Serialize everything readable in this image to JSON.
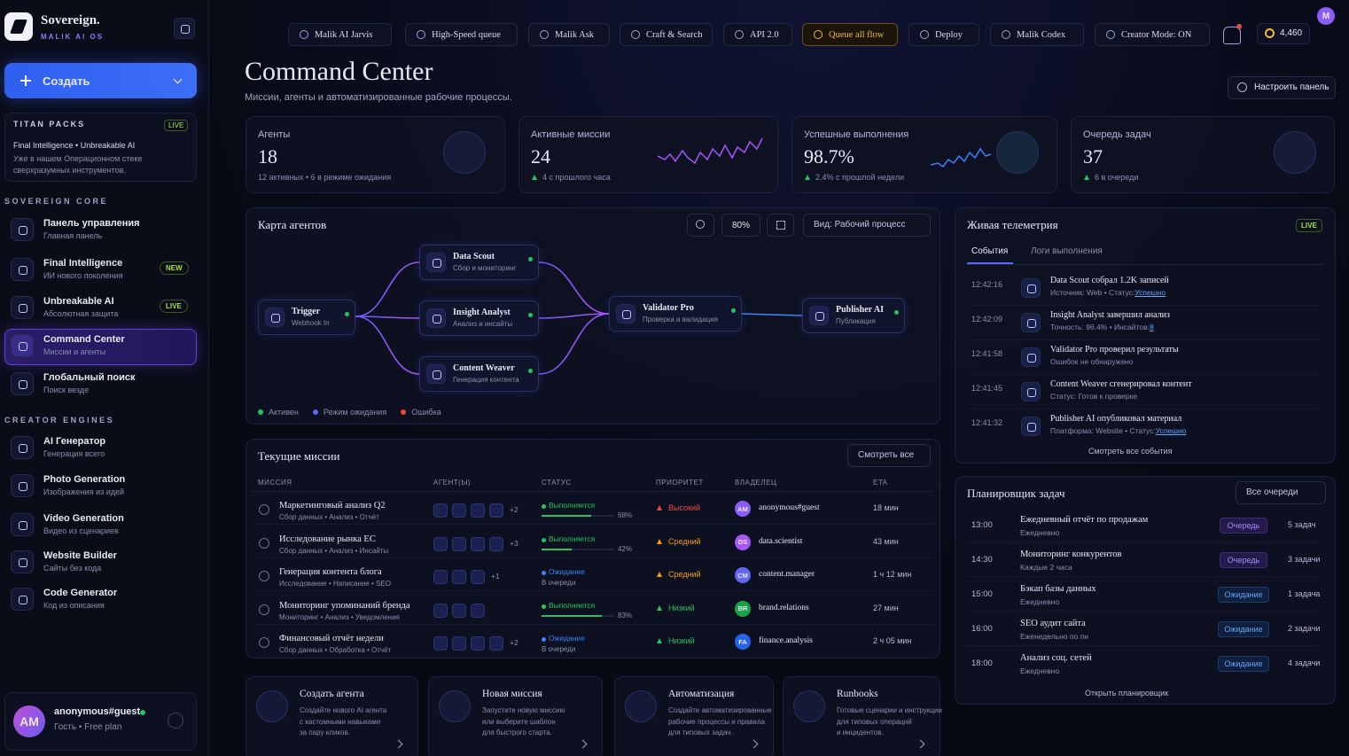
{
  "sidebar": {
    "brand": "Sovereign.",
    "brand_sub": "MALIK AI OS",
    "create": "Создать",
    "titan": {
      "title": "TITAN PACKS",
      "badge": "LIVE",
      "line1": "Final Intelligence • Unbreakable AI",
      "line2": "Уже в нашем Операционном стеке",
      "line3": "сверхразумных инструментов."
    },
    "sections": [
      {
        "title": "SOVEREIGN CORE",
        "items": [
          {
            "label": "Панель управления",
            "sub": "Главная панель"
          },
          {
            "label": "Final Intelligence",
            "sub": "ИИ нового поколения",
            "badge": "NEW"
          },
          {
            "label": "Unbreakable AI",
            "sub": "Абсолютная защита",
            "badge": "LIVE"
          },
          {
            "label": "Command Center",
            "sub": "Миссии и агенты",
            "active": true
          },
          {
            "label": "Глобальный поиск",
            "sub": "Поиск везде"
          }
        ]
      },
      {
        "title": "CREATOR ENGINES",
        "items": [
          {
            "label": "AI Генератор",
            "sub": "Генерация всего"
          },
          {
            "label": "Photo Generation",
            "sub": "Изображения из идей"
          },
          {
            "label": "Video Generation",
            "sub": "Видео из сценариев"
          },
          {
            "label": "Website Builder",
            "sub": "Сайты без кода"
          },
          {
            "label": "Code Generator",
            "sub": "Код из описания"
          }
        ]
      }
    ],
    "user": {
      "avatar": "AM",
      "name": "anonymous#guest",
      "plan": "Гость • Free plan"
    }
  },
  "topbar": {
    "tabs": [
      "Malik AI Jarvis",
      "High-Speed queue",
      "Malik Ask",
      "Craft & Search",
      "API 2.0",
      "Queue all flow",
      "Deploy",
      "Malik Codex",
      "Creator Mode: ON"
    ],
    "credits": "4,460",
    "avatar": "M"
  },
  "header": {
    "title": "Command Center",
    "subtitle": "Миссии, агенты и автоматизированные рабочие процессы.",
    "settings": "Настроить панель"
  },
  "stats": [
    {
      "label": "Агенты",
      "value": "18",
      "note": "12 активных • 6 в режиме ожидания"
    },
    {
      "label": "Активные миссии",
      "value": "24",
      "note": "4 с прошлого часа"
    },
    {
      "label": "Успешные выполнения",
      "value": "98.7%",
      "note": "2.4% с прошлой недели"
    },
    {
      "label": "Очередь задач",
      "value": "37",
      "note": "6 в очереди"
    }
  ],
  "agent_map": {
    "title": "Карта агентов",
    "zoom": "80%",
    "view": "Вид: Рабочий процесс",
    "nodes": [
      {
        "label": "Trigger",
        "sub": "Webhook In"
      },
      {
        "label": "Data Scout",
        "sub": "Сбор и мониторинг"
      },
      {
        "label": "Insight Analyst",
        "sub": "Анализ и инсайты"
      },
      {
        "label": "Content Weaver",
        "sub": "Генерация контента"
      },
      {
        "label": "Validator Pro",
        "sub": "Проверка и валидация"
      },
      {
        "label": "Publisher AI",
        "sub": "Публикация"
      }
    ],
    "legend": [
      {
        "label": "Активен",
        "color": "#22c55e"
      },
      {
        "label": "Режим ожидания",
        "color": "#6366f1"
      },
      {
        "label": "Ошибка",
        "color": "#ef4444"
      }
    ]
  },
  "telemetry": {
    "title": "Живая телеметрия",
    "badge": "LIVE",
    "tabs": [
      "События",
      "Логи выполнения"
    ],
    "events": [
      {
        "time": "12:42:16",
        "title": "Data Scout собрал 1.2K записей",
        "detail": "Источник: Web • Статус: ",
        "status": "Успешно"
      },
      {
        "time": "12:42:09",
        "title": "Insight Analyst завершил анализ",
        "detail": "Точность: 96.4% • Инсайтов: ",
        "status": "8"
      },
      {
        "time": "12:41:58",
        "title": "Validator Pro проверил результаты",
        "detail": "Ошибок не обнаружено"
      },
      {
        "time": "12:41:45",
        "title": "Content Weaver сгенерировал контент",
        "detail": "Статус: Готов к проверке"
      },
      {
        "time": "12:41:32",
        "title": "Publisher AI опубликовал материал",
        "detail": "Платформа: Website • Статус: ",
        "status": "Успешно"
      }
    ],
    "link": "Смотреть все события"
  },
  "missions": {
    "title": "Текущие миссии",
    "button": "Смотреть все",
    "columns": [
      "МИССИЯ",
      "АГЕНТ(Ы)",
      "СТАТУС",
      "ПРИОРИТЕТ",
      "ВЛАДЕЛЕЦ",
      "ETA"
    ],
    "rows": [
      {
        "name": "Маркетинговый анализ Q2",
        "path": "Сбор данных • Анализ • Отчёт",
        "agent_icons": 4,
        "agents_more": "+2",
        "status": "Выполняется",
        "status_color": "#22c55e",
        "progress": {
          "value": 68,
          "label": "68%"
        },
        "priority": "Высокий",
        "priority_color": "#ef4444",
        "owner_initials": "AM",
        "owner_color": "#8b5cf6",
        "owner": "anonymous#guest",
        "eta": "18 мин"
      },
      {
        "name": "Исследование рынка ЕС",
        "path": "Сбор данных • Анализ • Инсайты",
        "agent_icons": 4,
        "agents_more": "+3",
        "status": "Выполняется",
        "status_color": "#22c55e",
        "progress": {
          "value": 42,
          "label": "42%"
        },
        "priority": "Средний",
        "priority_color": "#f59e0b",
        "owner_initials": "DS",
        "owner_color": "#a855f7",
        "owner": "data.scientist",
        "eta": "43 мин"
      },
      {
        "name": "Генерация контента блога",
        "path": "Исследование • Написание • SEO",
        "agent_icons": 3,
        "agents_more": "+1",
        "status": "Ожидание",
        "status_color": "#3b82f6",
        "status_sub": "В очереди",
        "priority": "Средний",
        "priority_color": "#f59e0b",
        "owner_initials": "CM",
        "owner_color": "#6366f1",
        "owner": "content.manager",
        "eta": "1 ч 12 мин"
      },
      {
        "name": "Мониторинг упоминаний бренда",
        "path": "Мониторинг • Анализ • Уведомления",
        "agent_icons": 3,
        "status": "Выполняется",
        "status_color": "#22c55e",
        "progress": {
          "value": 83,
          "label": "83%"
        },
        "priority": "Низкий",
        "priority_color": "#22c55e",
        "owner_initials": "BR",
        "owner_color": "#16a34a",
        "owner": "brand.relations",
        "eta": "27 мин"
      },
      {
        "name": "Финансовый отчёт недели",
        "path": "Сбор данных • Обработка • Отчёт",
        "agent_icons": 4,
        "agents_more": "+2",
        "status": "Ожидание",
        "status_color": "#3b82f6",
        "status_sub": "В очереди",
        "priority": "Низкий",
        "priority_color": "#22c55e",
        "owner_initials": "FA",
        "owner_color": "#2563eb",
        "owner": "finance.analysis",
        "eta": "2 ч 05 мин"
      }
    ]
  },
  "scheduler": {
    "title": "Планировщик задач",
    "filter": "Все очереди",
    "rows": [
      {
        "time": "13:00",
        "title": "Ежедневный отчёт по продажам",
        "freq": "Ежедневно",
        "state": "Очередь",
        "count": "5 задач"
      },
      {
        "time": "14:30",
        "title": "Мониторинг конкурентов",
        "freq": "Каждые 2 часа",
        "state": "Очередь",
        "count": "3 задачи"
      },
      {
        "time": "15:00",
        "title": "Бэкап базы данных",
        "freq": "Ежедневно",
        "state": "Ожидание",
        "count": "1 задача"
      },
      {
        "time": "16:00",
        "title": "SEO аудит сайта",
        "freq": "Еженедельно по пн",
        "state": "Ожидание",
        "count": "2 задачи"
      },
      {
        "time": "18:00",
        "title": "Анализ соц. сетей",
        "freq": "Ежедневно",
        "state": "Ожидание",
        "count": "4 задачи"
      }
    ],
    "link": "Открыть планировщик"
  },
  "quick_actions": [
    {
      "title": "Создать агента",
      "desc": [
        "Создайте нового AI агента",
        "с кастомными навыками",
        "за пару кликов."
      ]
    },
    {
      "title": "Новая миссия",
      "desc": [
        "Запустите новую миссию",
        "или выберите шаблон",
        "для быстрого старта."
      ]
    },
    {
      "title": "Автоматизация",
      "desc": [
        "Создайте автоматизированные",
        "рабочие процессы и правила",
        "для типовых задач."
      ]
    },
    {
      "title": "Runbooks",
      "desc": [
        "Готовые сценарии и инструкции",
        "для типовых операций",
        "и инцидентов."
      ]
    }
  ]
}
